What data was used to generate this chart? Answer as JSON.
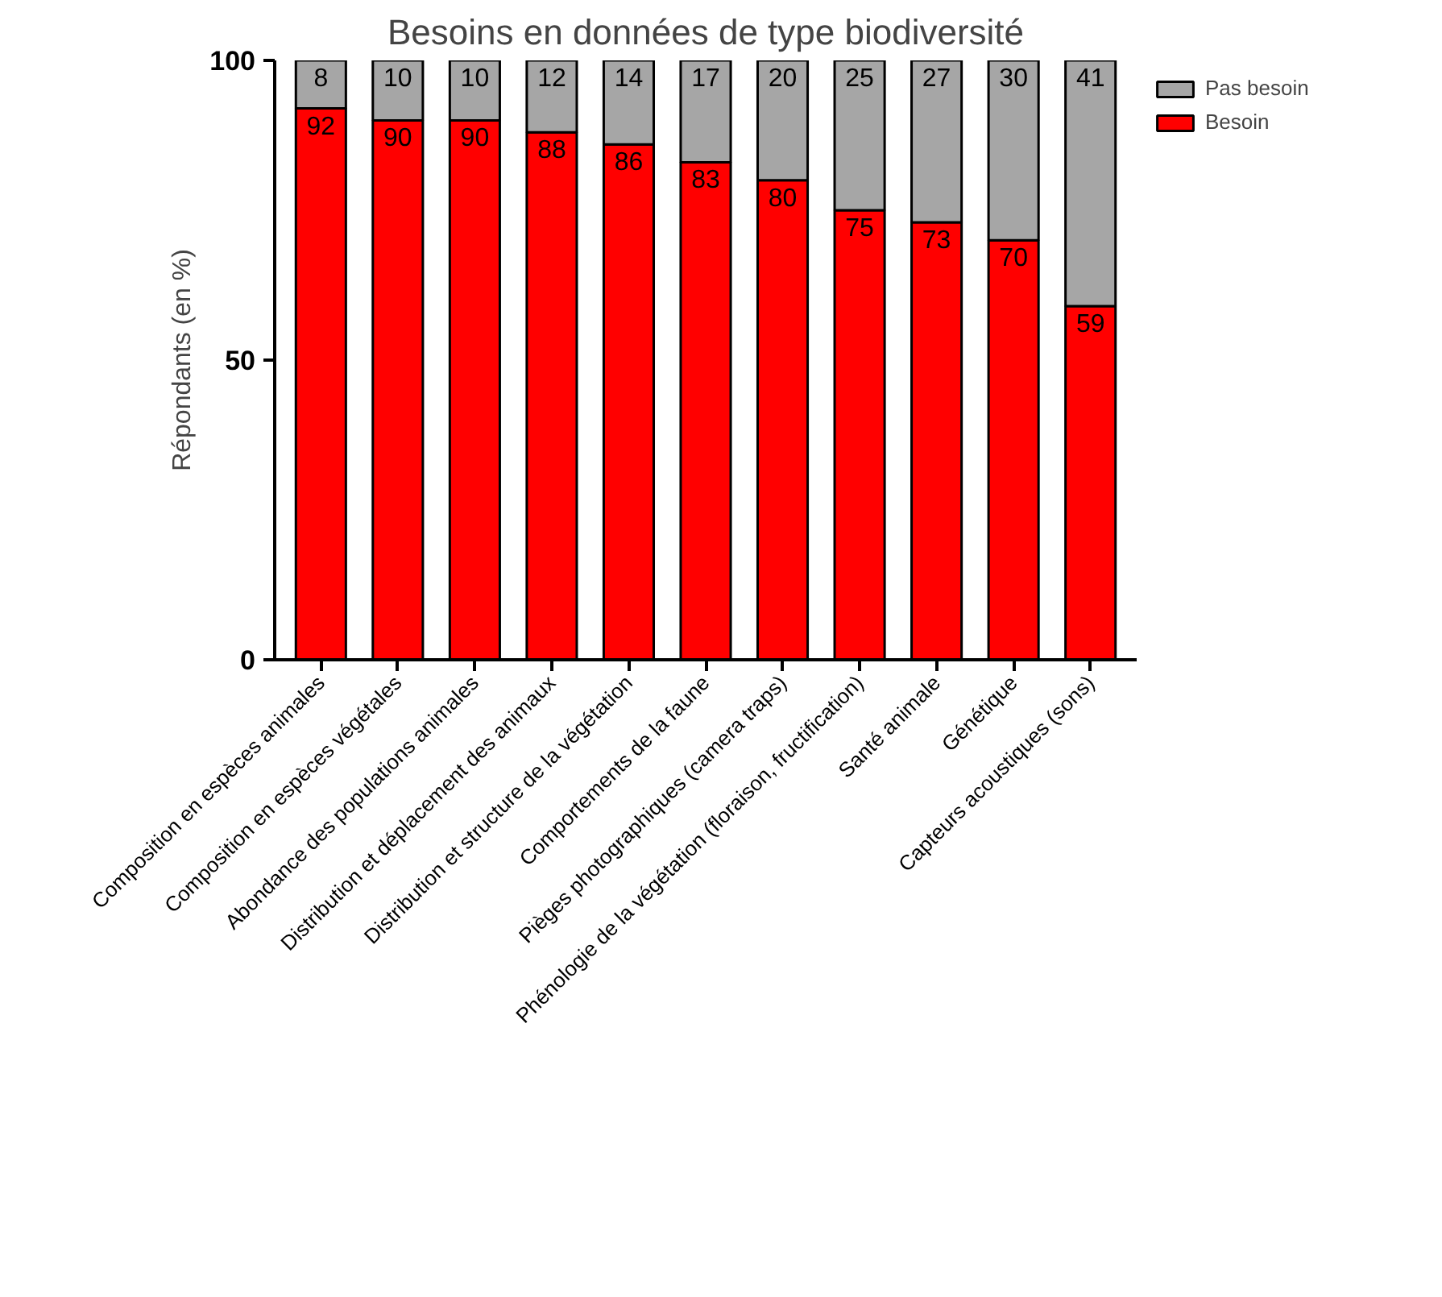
{
  "chart_data": {
    "type": "bar",
    "title": "Besoins en données de type biodiversité",
    "ylabel": "Répondants (en %)",
    "categories": [
      "Composition en espèces animales",
      "Composition en espèces végétales",
      "Abondance des populations animales",
      "Distribution et déplacement des animaux",
      "Distribution et structure de la végétation",
      "Comportements de la faune",
      "Pièges photographiques (camera traps)",
      "Phénologie de la végétation (floraison, fructification)",
      "Santé animale",
      "Génétique",
      "Capteurs acoustiques (sons)"
    ],
    "series": [
      {
        "name": "Besoin",
        "color": "#ff0000",
        "values": [
          92,
          90,
          90,
          88,
          86,
          83,
          80,
          75,
          73,
          70,
          59
        ]
      },
      {
        "name": "Pas besoin",
        "color": "#a6a6a6",
        "values": [
          8,
          10,
          10,
          12,
          14,
          17,
          20,
          25,
          27,
          30,
          41
        ]
      }
    ],
    "stacked": true,
    "data_labels": true,
    "ylim": [
      0,
      100
    ],
    "yticks": [
      0,
      50,
      100
    ],
    "legend": "top right"
  }
}
